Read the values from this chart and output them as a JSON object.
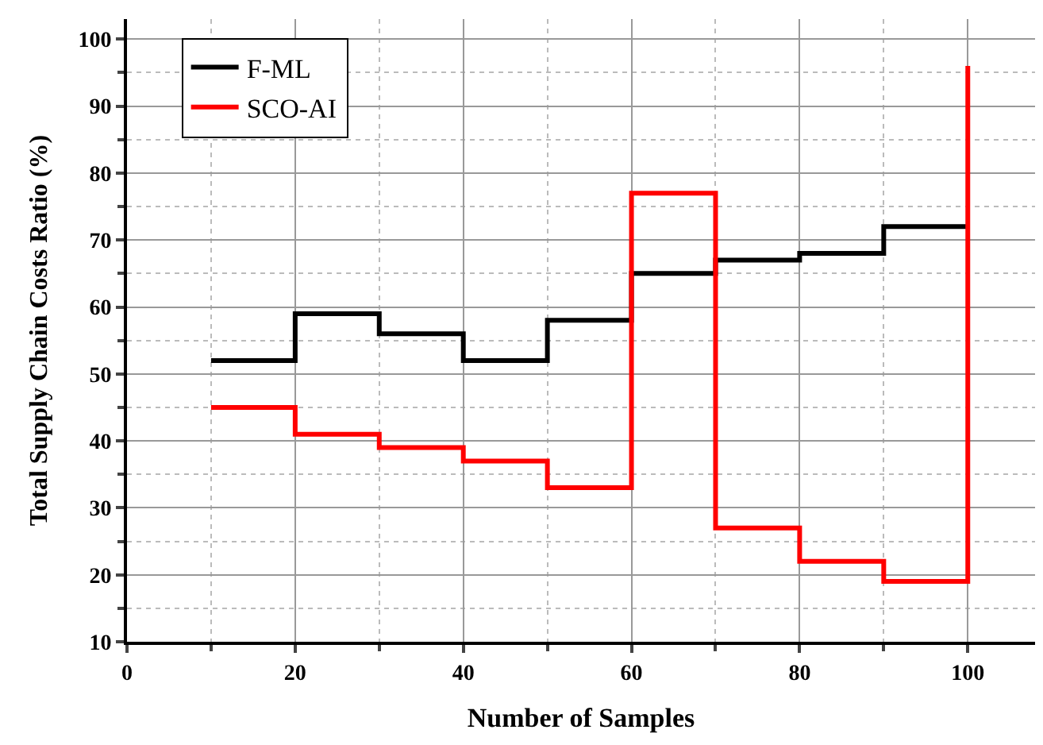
{
  "chart_data": {
    "type": "step",
    "xlabel": "Number of Samples",
    "ylabel": "Total Supply Chain Costs Ratio (%)",
    "x": [
      10,
      20,
      30,
      40,
      50,
      60,
      70,
      80,
      90,
      100
    ],
    "series": [
      {
        "name": "F-ML",
        "color": "#000000",
        "values": [
          52,
          59,
          56,
          52,
          58,
          65,
          67,
          68,
          72,
          72
        ]
      },
      {
        "name": "SCO-AI",
        "color": "#ff0000",
        "values": [
          45,
          41,
          39,
          37,
          33,
          77,
          27,
          22,
          19,
          96
        ]
      }
    ],
    "xlim": [
      0,
      108
    ],
    "xticks": [
      0,
      20,
      40,
      60,
      80,
      100
    ],
    "ylim": [
      10,
      103
    ],
    "yticks": [
      10,
      20,
      30,
      40,
      50,
      60,
      70,
      80,
      90,
      100
    ],
    "grid": true,
    "legend": "top left",
    "marker": "none",
    "line_style": "solid"
  }
}
